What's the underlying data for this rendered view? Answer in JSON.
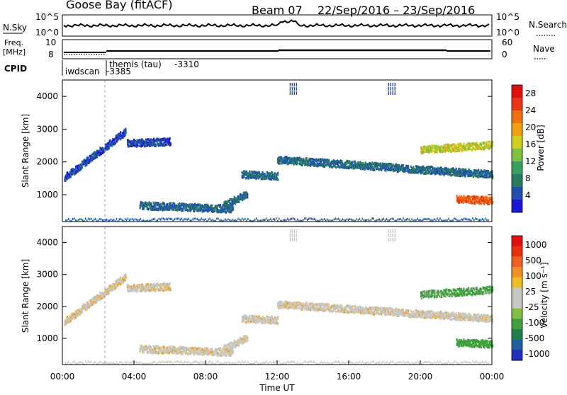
{
  "header": {
    "station": "Goose Bay (fitACF)",
    "beam": "Beam 07",
    "date_range": "22/Sep/2016 – 23/Sep/2016"
  },
  "top_panels": {
    "nsky_label": "N.Sky",
    "nsky_ticks": [
      "10^5",
      "10^0"
    ],
    "nsearch_label": "N.Search",
    "nsearch_ticks": [
      "10^5",
      "10^0"
    ],
    "freq_label_1": "Freq.",
    "freq_label_2": "[MHz]",
    "freq_ticks": [
      "10",
      "8"
    ],
    "nave_label": "Nave",
    "nave_ticks": [
      "60",
      "0"
    ],
    "cpid_label": "CPID",
    "cpid_entries": [
      {
        "name": "iwdscan",
        "id": "-3385"
      },
      {
        "name": "themis (tau)",
        "id": "-3310"
      }
    ]
  },
  "chart_data": [
    {
      "type": "heatmap",
      "panel": "power",
      "ylabel": "Slant Range [km]",
      "ylim": [
        180,
        4500
      ],
      "yticks": [
        1000,
        2000,
        3000,
        4000
      ],
      "xlim_hours": [
        0,
        24
      ],
      "colorbar": {
        "label": "Power [dB]",
        "range": [
          0,
          30
        ],
        "ticks": [
          "4",
          "8",
          "12",
          "16",
          "20",
          "24",
          "28"
        ],
        "colors": [
          "#1a18d8",
          "#2050b0",
          "#2a7a60",
          "#38a060",
          "#80c040",
          "#d0d020",
          "#f0a010",
          "#f07010",
          "#e83818",
          "#e01010"
        ]
      },
      "features": [
        {
          "desc": "rising band",
          "t0": 0.1,
          "t1": 3.5,
          "r0": 1550,
          "r1": 2950,
          "level": 4
        },
        {
          "desc": "band",
          "t0": 3.6,
          "t1": 6.0,
          "r0": 2600,
          "r1": 2650,
          "level": 4
        },
        {
          "desc": "band",
          "t0": 4.3,
          "t1": 9.5,
          "r0": 700,
          "r1": 600,
          "level": 6
        },
        {
          "desc": "band",
          "t0": 9.0,
          "t1": 10.3,
          "r0": 700,
          "r1": 1050,
          "level": 6
        },
        {
          "desc": "band",
          "t0": 10.0,
          "t1": 12.0,
          "r0": 1650,
          "r1": 1600,
          "level": 6
        },
        {
          "desc": "band",
          "t0": 12.0,
          "t1": 24.0,
          "r0": 2100,
          "r1": 1650,
          "level": 6
        },
        {
          "desc": "band",
          "t0": 20.0,
          "t1": 24.0,
          "r0": 2400,
          "r1": 2550,
          "level": 16
        },
        {
          "desc": "band",
          "t0": 22.0,
          "t1": 24.0,
          "r0": 900,
          "r1": 850,
          "level": 24
        }
      ]
    },
    {
      "type": "heatmap",
      "panel": "velocity",
      "ylabel": "Slant Range [km]",
      "ylim": [
        180,
        4500
      ],
      "yticks": [
        1000,
        2000,
        3000,
        4000
      ],
      "xlim_hours": [
        0,
        24
      ],
      "xticks": [
        "00:00",
        "04:00",
        "08:00",
        "12:00",
        "16:00",
        "20:00",
        "00:00"
      ],
      "xlabel": "Time UT",
      "colorbar": {
        "label": "Velocity [m s⁻¹]",
        "ticks": [
          "1000",
          "500",
          "100",
          "25",
          "-25",
          "-100",
          "-500",
          "-1000"
        ],
        "colors": [
          "#2030c0",
          "#2060a0",
          "#208050",
          "#40a040",
          "#80c040",
          "#c8c8c0",
          "#c8c8c0",
          "#f0c020",
          "#f09020",
          "#f06020",
          "#e83010",
          "#e01010"
        ]
      }
    }
  ]
}
